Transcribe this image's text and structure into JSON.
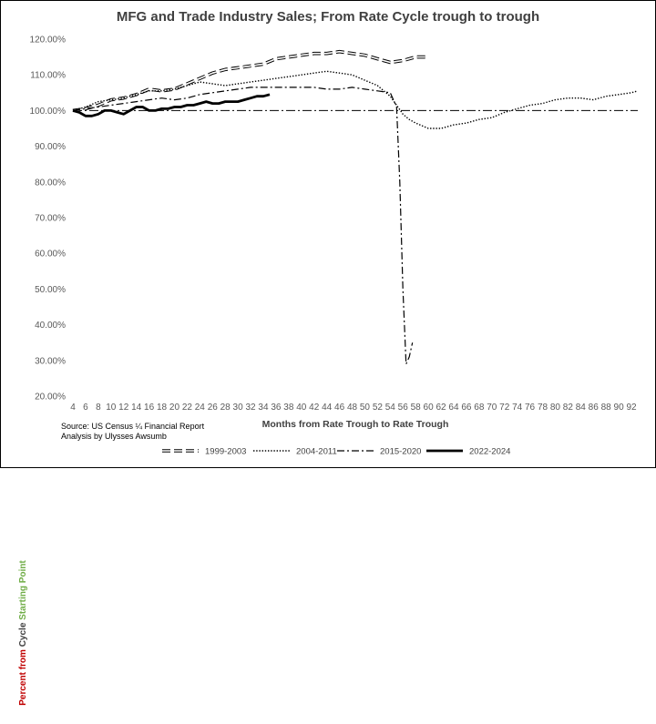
{
  "chart_data": {
    "type": "line",
    "title": "MFG and Trade Industry Sales; From Rate Cycle trough to trough",
    "xlabel": "Months from Rate Trough to Rate Trough",
    "ylabel_parts": [
      "Percent from",
      " Cycle ",
      "Starting Point"
    ],
    "ylim": [
      20,
      120
    ],
    "xlim": [
      4,
      93
    ],
    "y_ticks": [
      "20.00%",
      "30.00%",
      "40.00%",
      "50.00%",
      "60.00%",
      "70.00%",
      "80.00%",
      "90.00%",
      "100.00%",
      "110.00%",
      "120.00%"
    ],
    "x_ticks": [
      4,
      6,
      8,
      10,
      12,
      14,
      16,
      18,
      20,
      22,
      24,
      26,
      28,
      30,
      32,
      34,
      36,
      38,
      40,
      42,
      44,
      46,
      48,
      50,
      52,
      54,
      56,
      58,
      60,
      62,
      64,
      66,
      68,
      70,
      72,
      74,
      76,
      78,
      80,
      82,
      84,
      86,
      88,
      90,
      92
    ],
    "grid": false,
    "legend_position": "bottom",
    "source_lines": [
      "Source: US Census ¼ Financial Report",
      "Analysis by Ulysses Awsumb"
    ],
    "reference_line": 100,
    "series": [
      {
        "name": "1999-2003",
        "style": "long-dash",
        "x": [
          4,
          6,
          8,
          10,
          12,
          14,
          16,
          18,
          20,
          22,
          24,
          26,
          28,
          30,
          32,
          34,
          36,
          38,
          40,
          42,
          44,
          46,
          48,
          50,
          52,
          54,
          56,
          58,
          60
        ],
        "y": [
          100,
          100.5,
          101.5,
          103,
          103.5,
          104.5,
          106,
          105.5,
          106,
          107.5,
          109,
          110.5,
          111.5,
          112,
          112.5,
          113,
          114.5,
          115,
          115.5,
          116,
          116,
          116.5,
          116,
          115.5,
          114.5,
          113.5,
          114,
          115,
          115
        ]
      },
      {
        "name": "2004-2011",
        "style": "dotted",
        "x": [
          4,
          6,
          8,
          10,
          12,
          14,
          16,
          18,
          20,
          22,
          24,
          26,
          28,
          30,
          32,
          34,
          36,
          38,
          40,
          42,
          44,
          46,
          48,
          50,
          52,
          54,
          55,
          56,
          57,
          58,
          60,
          62,
          64,
          66,
          68,
          70,
          72,
          74,
          76,
          78,
          80,
          82,
          84,
          86,
          88,
          90,
          92,
          93
        ],
        "y": [
          100,
          101,
          102.5,
          103,
          103.5,
          104.5,
          105.5,
          105.5,
          106,
          107,
          108,
          107.5,
          107,
          107.5,
          108,
          108.5,
          109,
          109.5,
          110,
          110.5,
          111,
          110.5,
          110,
          108.5,
          107,
          104,
          101.5,
          99,
          97.5,
          96.5,
          95,
          95,
          96,
          96.5,
          97.5,
          98,
          99.5,
          100.5,
          101.5,
          102,
          103,
          103.5,
          103.5,
          103,
          104,
          104.5,
          105,
          105.5
        ]
      },
      {
        "name": "2015-2020",
        "style": "dash-dot",
        "x": [
          4,
          6,
          8,
          10,
          12,
          14,
          16,
          18,
          20,
          22,
          24,
          26,
          28,
          30,
          32,
          34,
          36,
          38,
          40,
          42,
          44,
          46,
          48,
          50,
          52,
          54,
          55,
          55.5,
          56,
          56.5,
          57,
          57.5
        ],
        "y": [
          100,
          100.5,
          101,
          101.5,
          102,
          102.5,
          103,
          103.5,
          103,
          103.5,
          104.5,
          105,
          105.5,
          106,
          106.5,
          106.5,
          106.5,
          106.5,
          106.5,
          106.5,
          106,
          106,
          106.5,
          106,
          105.5,
          105,
          101,
          80,
          50,
          29,
          31,
          35
        ]
      },
      {
        "name": "2022-2024",
        "style": "solid-bold",
        "x": [
          4,
          5,
          6,
          7,
          8,
          9,
          10,
          11,
          12,
          13,
          14,
          15,
          16,
          17,
          18,
          19,
          20,
          21,
          22,
          23,
          24,
          25,
          26,
          27,
          28,
          29,
          30,
          31,
          32,
          33,
          34,
          35
        ],
        "y": [
          100,
          99.5,
          98.5,
          98.5,
          99,
          100,
          100,
          99.5,
          99,
          100,
          101,
          101,
          100,
          100,
          100.5,
          100.5,
          101,
          101,
          101.5,
          101.5,
          102,
          102.5,
          102,
          102,
          102.5,
          102.5,
          102.5,
          103,
          103.5,
          104,
          104,
          104.5
        ]
      }
    ]
  }
}
